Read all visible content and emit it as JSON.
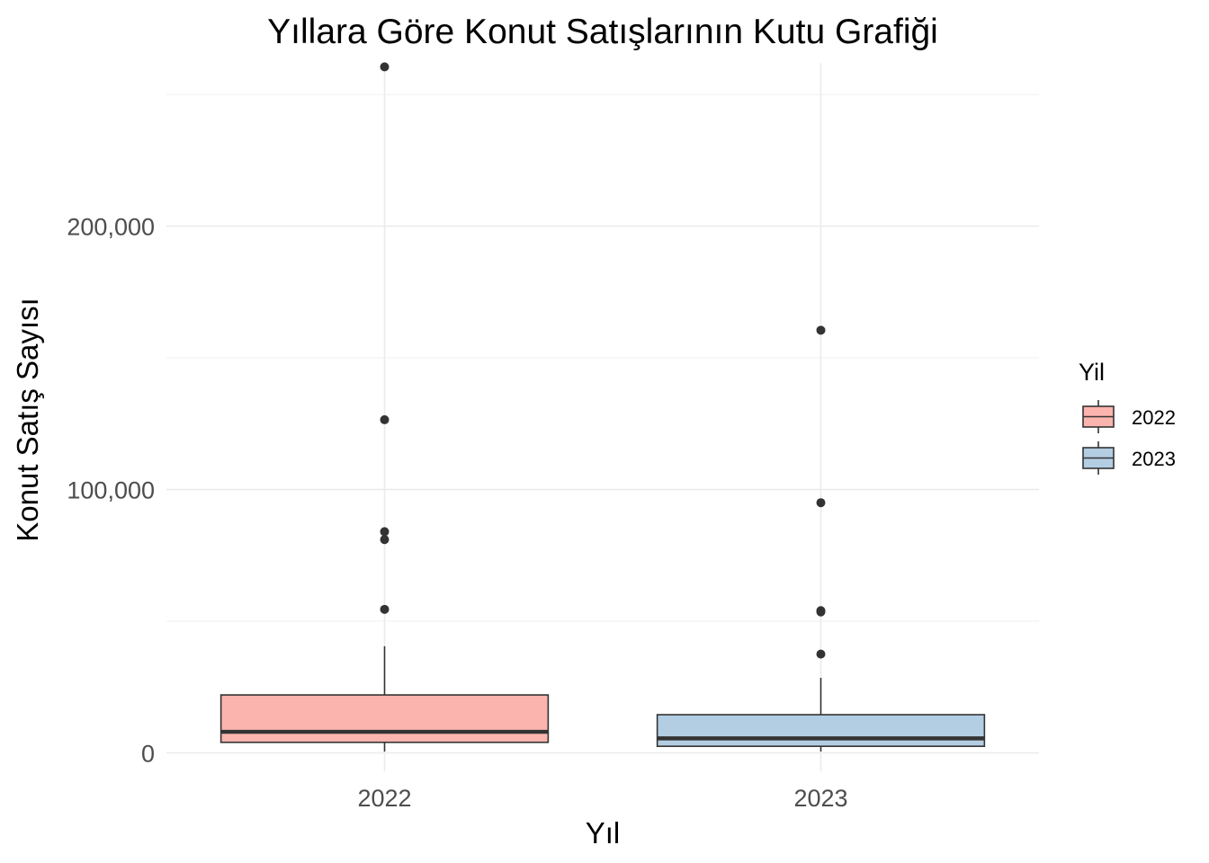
{
  "chart_data": {
    "type": "boxplot",
    "title": "Yıllara Göre Konut Satışlarının Kutu Grafiği",
    "xlabel": "Yıl",
    "ylabel": "Konut Satış Sayısı",
    "ylim": [
      -7000,
      262000
    ],
    "y_ticks": [
      0,
      100000,
      200000
    ],
    "y_tick_labels": [
      "0",
      "100,000",
      "200,000"
    ],
    "grid": true,
    "legend": {
      "title": "Yil",
      "position": "right"
    },
    "categories": [
      "2022",
      "2023"
    ],
    "series": [
      {
        "name": "2022",
        "color": "#fbb4ae",
        "min": 500,
        "q1": 4000,
        "median": 8000,
        "q3": 22000,
        "max": 40500,
        "outliers": [
          54500,
          81000,
          84000,
          126500,
          260500
        ]
      },
      {
        "name": "2023",
        "color": "#b3cde3",
        "min": 500,
        "q1": 2500,
        "median": 5500,
        "q3": 14500,
        "max": 28500,
        "outliers": [
          37500,
          53500,
          54000,
          95000,
          160500
        ]
      }
    ]
  }
}
